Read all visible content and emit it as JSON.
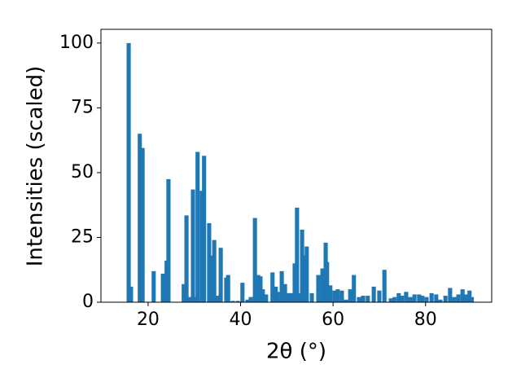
{
  "chart_data": {
    "type": "bar",
    "xlabel": "2θ (°)",
    "ylabel": "Intensities (scaled)",
    "color": "#1f77b4",
    "x": [
      15.8,
      16.3,
      18.2,
      18.8,
      21.2,
      23.2,
      24.0,
      24.4,
      27.7,
      28.3,
      28.8,
      29.7,
      30.2,
      30.7,
      31.6,
      32.1,
      33.2,
      33.9,
      34.3,
      35.0,
      35.7,
      36.9,
      37.3,
      38.3,
      39.4,
      40.4,
      41.5,
      42.2,
      43.1,
      43.8,
      44.3,
      44.8,
      45.5,
      46.9,
      47.6,
      48.0,
      48.9,
      49.6,
      50.3,
      51.0,
      51.7,
      52.2,
      52.9,
      53.3,
      53.8,
      54.3,
      55.4,
      56.8,
      57.7,
      58.4,
      58.7,
      59.4,
      60.3,
      61.0,
      61.9,
      62.8,
      63.7,
      64.5,
      65.6,
      66.5,
      67.5,
      68.8,
      70.0,
      71.1,
      72.5,
      73.3,
      74.2,
      74.9,
      75.8,
      76.7,
      77.6,
      78.6,
      79.3,
      80.2,
      81.3,
      82.3,
      83.2,
      84.3,
      85.3,
      86.2,
      87.1,
      88.0,
      88.7,
      89.5,
      90.0
    ],
    "values": [
      100,
      6,
      65,
      59.5,
      12,
      11,
      16,
      47.5,
      7,
      33.5,
      2,
      43.5,
      2,
      58,
      43,
      56.5,
      30.5,
      18,
      24,
      2.5,
      21,
      9.5,
      10.5,
      0.5,
      0.5,
      7.5,
      1,
      2,
      32.5,
      10.5,
      10,
      5,
      3,
      11.5,
      6,
      4,
      12,
      7,
      3.5,
      3.5,
      15,
      36.5,
      3.5,
      28,
      18,
      21.5,
      3.5,
      10.5,
      13,
      23,
      15.5,
      6.5,
      4.5,
      5,
      4.5,
      1,
      5,
      10.5,
      2,
      2.5,
      2.5,
      6,
      4.5,
      12.5,
      1.5,
      2,
      3.5,
      2.5,
      4,
      2,
      3,
      3,
      2.5,
      2,
      3.5,
      3,
      1,
      2.5,
      5.5,
      2,
      3,
      5,
      3,
      4.5,
      2
    ],
    "xlim": [
      9.8,
      94.3
    ],
    "ylim": [
      0,
      105.3
    ],
    "xticks": [
      20,
      40,
      60,
      80
    ],
    "yticks": [
      0,
      25,
      50,
      75,
      100
    ]
  }
}
